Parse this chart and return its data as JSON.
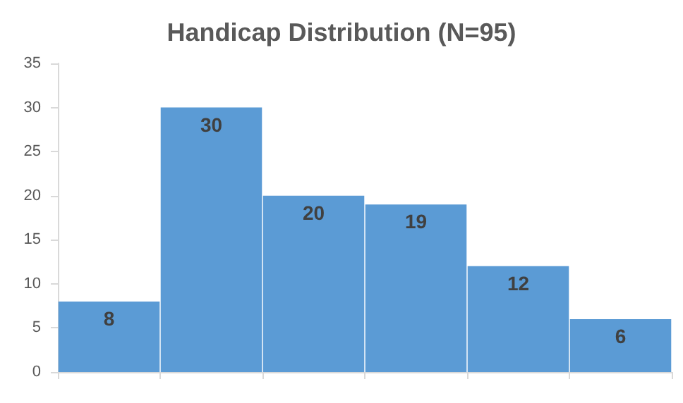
{
  "chart_data": {
    "type": "bar",
    "title": "Handicap Distribution (N=95)",
    "categories": [
      null,
      null,
      null,
      null,
      null,
      null
    ],
    "values": [
      8,
      30,
      20,
      19,
      12,
      6
    ],
    "color": "#5b9bd5",
    "ylim": [
      0,
      35
    ],
    "yticks": [
      0,
      5,
      10,
      15,
      20,
      25,
      30,
      35
    ],
    "data_labels": true,
    "grid": false
  }
}
